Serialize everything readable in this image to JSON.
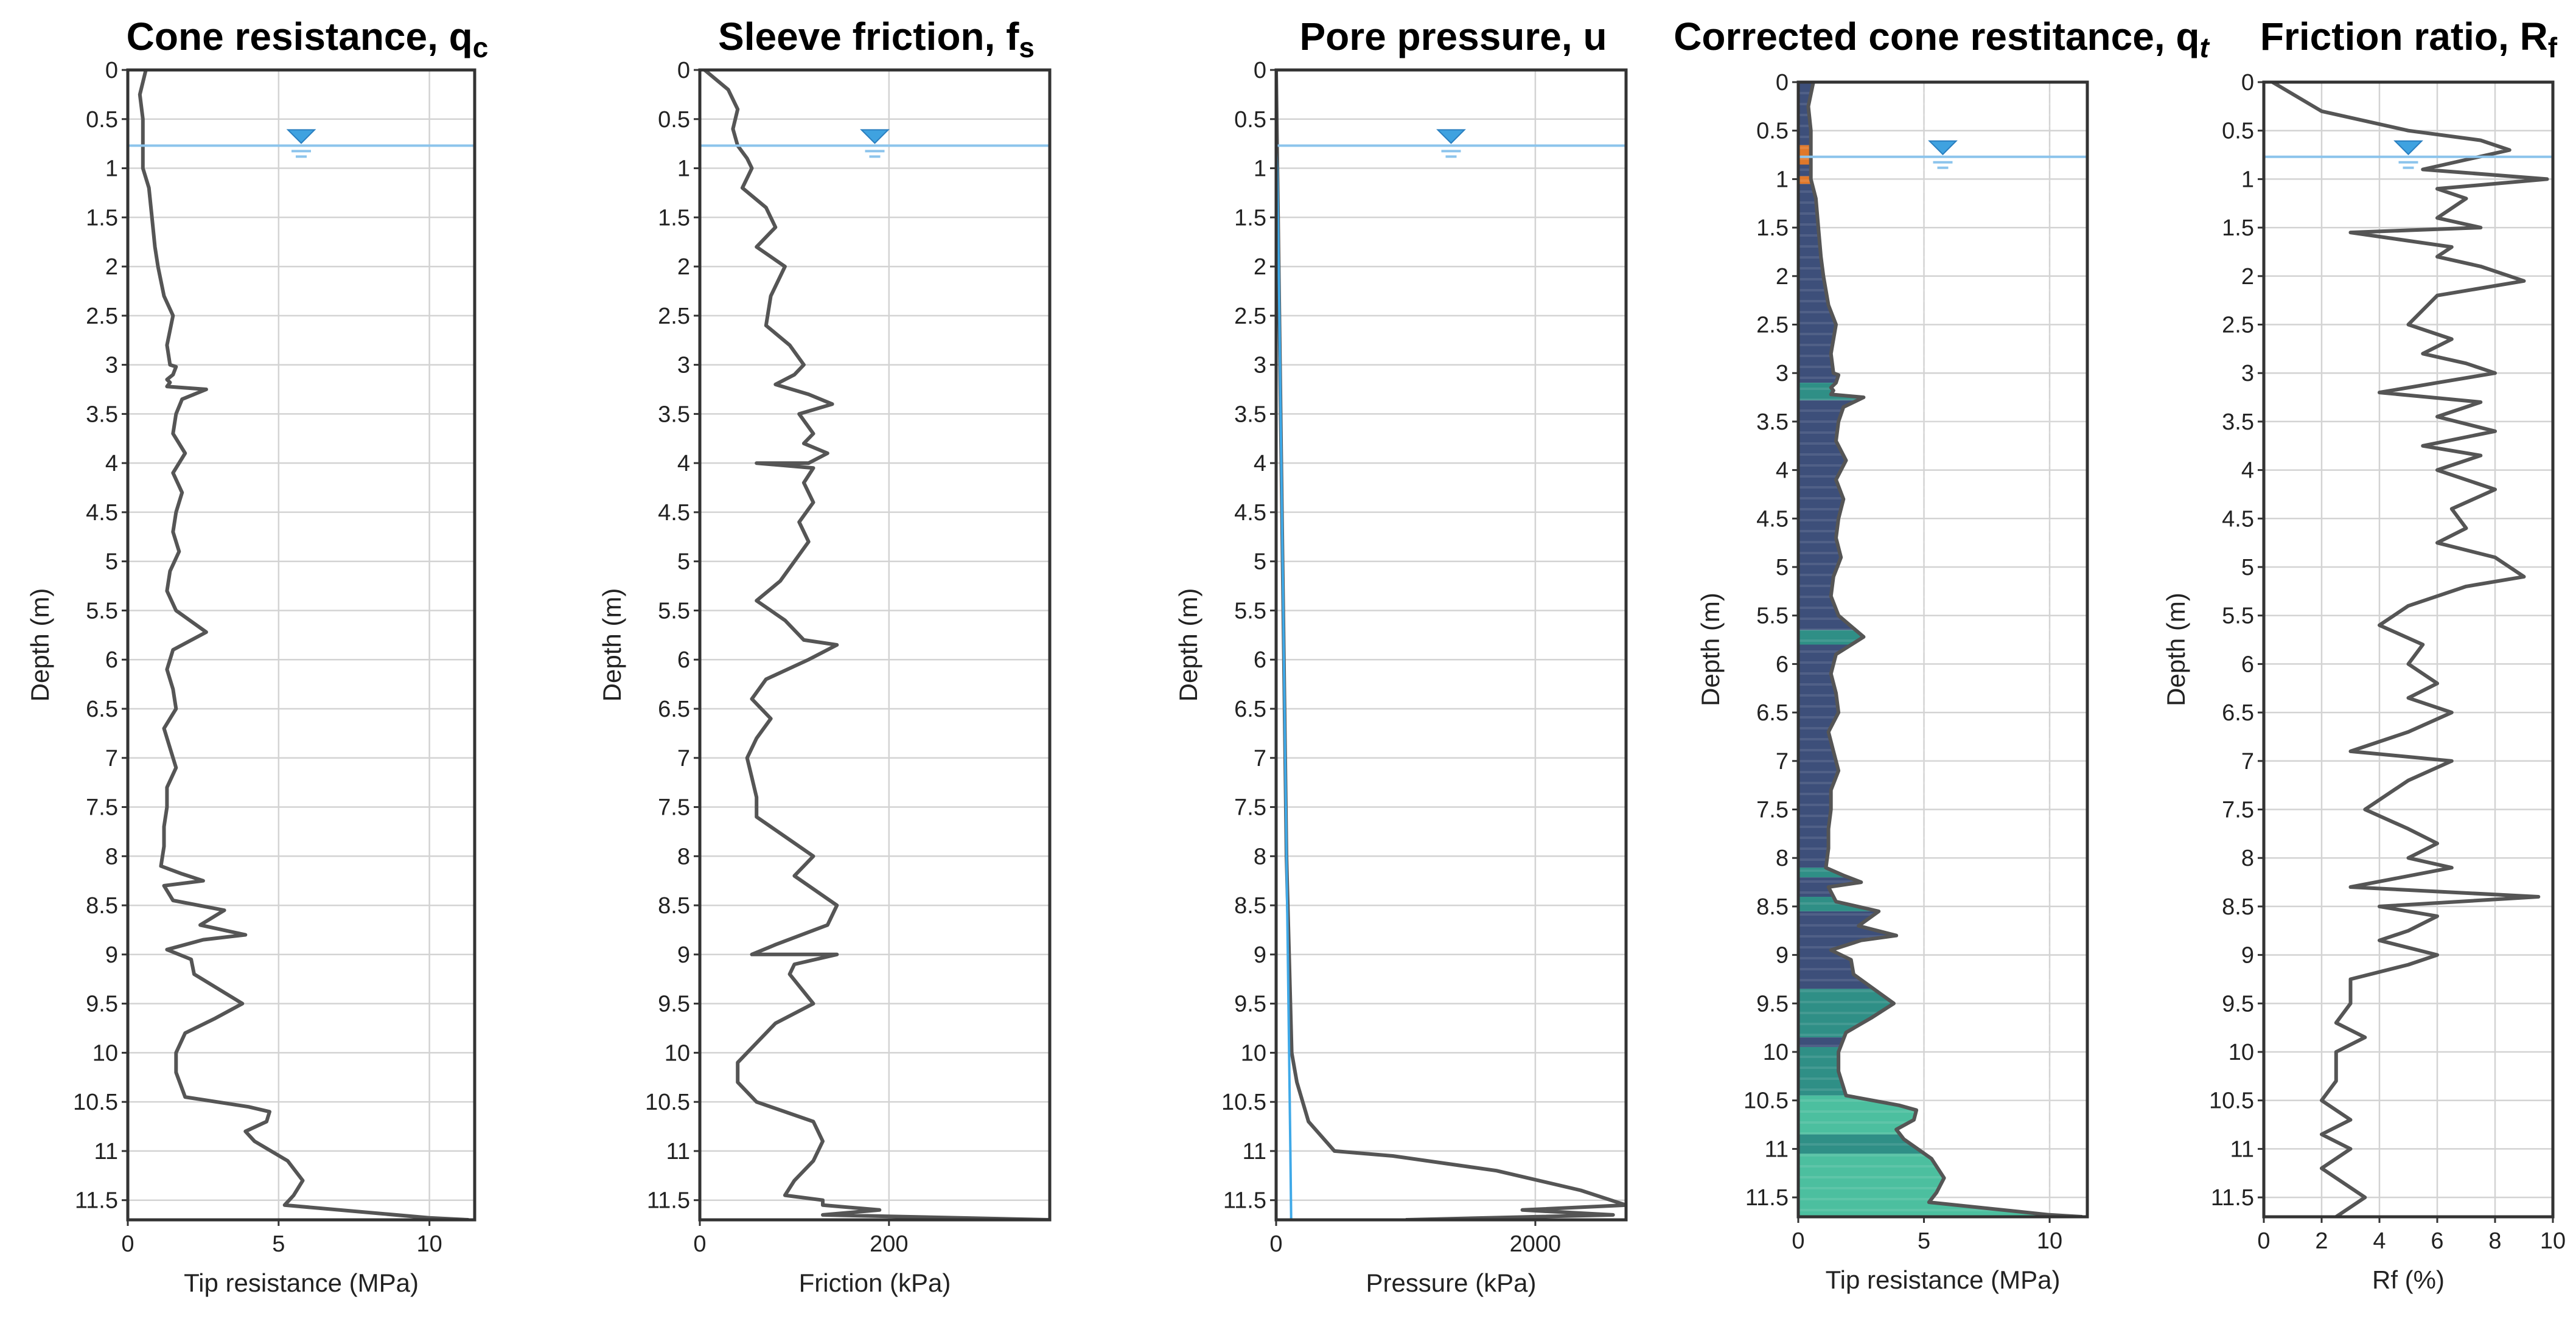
{
  "chart_data": [
    {
      "type": "line",
      "title": "Cone resistance, q",
      "title_sub": "c",
      "xlabel": "Tip resistance (MPa)",
      "ylabel": "Depth (m)",
      "xlim": [
        0,
        11.5
      ],
      "ylim": [
        0,
        11.7
      ],
      "x_ticks": [
        0,
        5,
        10
      ],
      "y_ticks": [
        0,
        0.5,
        1,
        1.5,
        2,
        2.5,
        3,
        3.5,
        4,
        4.5,
        5,
        5.5,
        6,
        6.5,
        7,
        7.5,
        8,
        8.5,
        9,
        9.5,
        10,
        10.5,
        11,
        11.5
      ],
      "grid": true,
      "water_table_depth": 0.77,
      "series": [
        {
          "x": [
            0.6,
            0.4,
            0.5,
            0.5,
            0.5,
            0.7,
            0.8,
            0.9,
            1.0,
            1.2,
            1.5,
            1.3,
            1.4,
            1.6,
            1.5,
            1.3,
            1.4,
            1.3,
            2.6,
            1.8,
            1.6,
            1.5,
            1.9,
            1.5,
            1.8,
            1.6,
            1.5,
            1.7,
            1.4,
            1.3,
            1.6,
            2.6,
            1.5,
            1.3,
            1.5,
            1.6,
            1.2,
            1.4,
            1.6,
            1.3,
            1.3,
            1.2,
            1.2,
            1.1,
            1.8,
            2.5,
            1.2,
            1.5,
            3.2,
            2.4,
            3.9,
            2.5,
            1.3,
            2.1,
            2.2,
            3.8,
            2.9,
            1.9,
            1.6,
            1.6,
            1.9,
            4.0,
            4.7,
            4.6,
            3.9,
            4.2,
            5.3,
            5.8,
            5.5,
            5.2,
            10.0,
            11.3
          ],
          "y": [
            0.0,
            0.25,
            0.5,
            0.77,
            1.0,
            1.2,
            1.5,
            1.8,
            2.0,
            2.3,
            2.5,
            2.8,
            3.0,
            3.02,
            3.1,
            3.15,
            3.18,
            3.22,
            3.25,
            3.35,
            3.5,
            3.7,
            3.9,
            4.1,
            4.3,
            4.5,
            4.7,
            4.9,
            5.1,
            5.3,
            5.5,
            5.72,
            5.9,
            6.1,
            6.3,
            6.5,
            6.7,
            6.9,
            7.1,
            7.3,
            7.5,
            7.7,
            7.9,
            8.1,
            8.18,
            8.25,
            8.3,
            8.45,
            8.55,
            8.7,
            8.8,
            8.85,
            8.95,
            9.05,
            9.2,
            9.5,
            9.65,
            9.8,
            10.0,
            10.2,
            10.45,
            10.55,
            10.6,
            10.7,
            10.8,
            10.9,
            11.1,
            11.3,
            11.45,
            11.55,
            11.68,
            11.7
          ]
        }
      ]
    },
    {
      "type": "line",
      "title": "Sleeve friction, f",
      "title_sub": "s",
      "xlabel": "Friction (kPa)",
      "ylabel": "Depth (m)",
      "xlim": [
        0,
        370
      ],
      "ylim": [
        0,
        11.7
      ],
      "x_ticks": [
        0,
        200
      ],
      "y_ticks": [
        0,
        0.5,
        1,
        1.5,
        2,
        2.5,
        3,
        3.5,
        4,
        4.5,
        5,
        5.5,
        6,
        6.5,
        7,
        7.5,
        8,
        8.5,
        9,
        9.5,
        10,
        10.5,
        11,
        11.5
      ],
      "grid": true,
      "water_table_depth": 0.77,
      "series": [
        {
          "x": [
            5,
            30,
            40,
            35,
            40,
            50,
            55,
            45,
            70,
            80,
            60,
            90,
            75,
            70,
            95,
            110,
            100,
            80,
            115,
            140,
            105,
            120,
            110,
            135,
            115,
            60,
            120,
            110,
            120,
            105,
            115,
            100,
            85,
            60,
            90,
            110,
            145,
            115,
            70,
            55,
            75,
            60,
            50,
            55,
            60,
            60,
            90,
            120,
            100,
            145,
            135,
            80,
            55,
            145,
            100,
            95,
            120,
            80,
            60,
            40,
            40,
            60,
            120,
            130,
            120,
            100,
            90,
            130,
            130,
            190,
            130,
            370
          ],
          "y": [
            0.0,
            0.2,
            0.4,
            0.6,
            0.77,
            0.9,
            1.0,
            1.2,
            1.4,
            1.6,
            1.8,
            2.0,
            2.3,
            2.6,
            2.8,
            3.0,
            3.1,
            3.2,
            3.3,
            3.4,
            3.5,
            3.7,
            3.8,
            3.9,
            4.0,
            4.0,
            4.05,
            4.2,
            4.4,
            4.6,
            4.8,
            5.0,
            5.2,
            5.4,
            5.6,
            5.8,
            5.85,
            6.0,
            6.2,
            6.4,
            6.6,
            6.8,
            7.0,
            7.2,
            7.4,
            7.6,
            7.8,
            8.0,
            8.2,
            8.5,
            8.7,
            8.9,
            9.0,
            9.0,
            9.1,
            9.2,
            9.5,
            9.7,
            9.9,
            10.1,
            10.3,
            10.5,
            10.7,
            10.9,
            11.1,
            11.3,
            11.45,
            11.5,
            11.55,
            11.6,
            11.65,
            11.7
          ]
        }
      ]
    },
    {
      "type": "line",
      "title": "Pore pressure, u",
      "xlabel": "Pressure (kPa)",
      "ylabel": "Depth (m)",
      "xlim": [
        0,
        2700
      ],
      "ylim": [
        0,
        11.7
      ],
      "x_ticks": [
        0,
        2000
      ],
      "y_ticks": [
        0,
        0.5,
        1,
        1.5,
        2,
        2.5,
        3,
        3.5,
        4,
        4.5,
        5,
        5.5,
        6,
        6.5,
        7,
        7.5,
        8,
        8.5,
        9,
        9.5,
        10,
        10.5,
        11,
        11.5
      ],
      "grid": true,
      "water_table_depth": 0.77,
      "series": [
        {
          "x": [
            0,
            10,
            20,
            30,
            40,
            50,
            60,
            70,
            80,
            100,
            120,
            160,
            250,
            450,
            900,
            1700,
            2350,
            2700,
            1900,
            2600,
            1000
          ],
          "y": [
            0.0,
            1.0,
            2.0,
            3.0,
            4.0,
            5.0,
            6.0,
            7.0,
            8.0,
            9.0,
            10.0,
            10.3,
            10.7,
            11.0,
            11.05,
            11.2,
            11.4,
            11.55,
            11.6,
            11.65,
            11.7
          ]
        },
        {
          "x": [
            0,
            8,
            20,
            30,
            40,
            50,
            60,
            70,
            80,
            90,
            100,
            110,
            116
          ],
          "y": [
            0.77,
            1.0,
            2.0,
            3.0,
            4.0,
            5.0,
            6.0,
            7.0,
            8.0,
            9.0,
            10.0,
            11.0,
            11.7
          ]
        }
      ]
    },
    {
      "type": "area",
      "title": "Corrected cone restitance, q",
      "title_sub": "t",
      "xlabel": "Tip resistance (MPa)",
      "ylabel": "Depth (m)",
      "xlim": [
        0,
        11.5
      ],
      "ylim": [
        0,
        11.7
      ],
      "x_ticks": [
        0,
        5,
        10
      ],
      "y_ticks": [
        0,
        0.5,
        1,
        1.5,
        2,
        2.5,
        3,
        3.5,
        4,
        4.5,
        5,
        5.5,
        6,
        6.5,
        7,
        7.5,
        8,
        8.5,
        9,
        9.5,
        10,
        10.5,
        11,
        11.5
      ],
      "grid": true,
      "water_table_depth": 0.77,
      "colors": [
        "#3d4f7a",
        "#2f8f86",
        "#4cbf9f",
        "#e0782a"
      ],
      "series": [
        {
          "x": [
            0.6,
            0.4,
            0.5,
            0.5,
            0.5,
            0.7,
            0.8,
            0.9,
            1.0,
            1.2,
            1.5,
            1.3,
            1.4,
            1.6,
            1.5,
            1.3,
            1.4,
            1.3,
            2.6,
            1.8,
            1.6,
            1.5,
            1.9,
            1.5,
            1.8,
            1.6,
            1.5,
            1.7,
            1.4,
            1.3,
            1.6,
            2.6,
            1.5,
            1.3,
            1.5,
            1.6,
            1.2,
            1.4,
            1.6,
            1.3,
            1.3,
            1.2,
            1.2,
            1.1,
            1.8,
            2.5,
            1.2,
            1.5,
            3.2,
            2.4,
            3.9,
            2.5,
            1.3,
            2.1,
            2.2,
            3.8,
            2.9,
            1.9,
            1.6,
            1.6,
            1.9,
            4.0,
            4.7,
            4.6,
            3.9,
            4.2,
            5.3,
            5.8,
            5.5,
            5.2,
            10.0,
            11.3
          ],
          "y": [
            0.0,
            0.25,
            0.5,
            0.77,
            1.0,
            1.2,
            1.5,
            1.8,
            2.0,
            2.3,
            2.5,
            2.8,
            3.0,
            3.02,
            3.1,
            3.15,
            3.18,
            3.22,
            3.25,
            3.35,
            3.5,
            3.7,
            3.9,
            4.1,
            4.3,
            4.5,
            4.7,
            4.9,
            5.1,
            5.3,
            5.5,
            5.72,
            5.9,
            6.1,
            6.3,
            6.5,
            6.7,
            6.9,
            7.1,
            7.3,
            7.5,
            7.7,
            7.9,
            8.1,
            8.18,
            8.25,
            8.3,
            8.45,
            8.55,
            8.7,
            8.8,
            8.85,
            8.95,
            9.05,
            9.2,
            9.5,
            9.65,
            9.8,
            10.0,
            10.2,
            10.45,
            10.55,
            10.6,
            10.7,
            10.8,
            10.9,
            11.1,
            11.3,
            11.45,
            11.55,
            11.68,
            11.7
          ]
        }
      ],
      "color_bands": [
        {
          "from": 0.0,
          "to": 0.65,
          "color_index": 0
        },
        {
          "from": 0.65,
          "to": 0.85,
          "color_index": 3
        },
        {
          "from": 0.85,
          "to": 0.97,
          "color_index": 0
        },
        {
          "from": 0.97,
          "to": 1.05,
          "color_index": 3
        },
        {
          "from": 1.05,
          "to": 3.1,
          "color_index": 0
        },
        {
          "from": 3.1,
          "to": 3.28,
          "color_index": 1
        },
        {
          "from": 3.28,
          "to": 5.65,
          "color_index": 0
        },
        {
          "from": 5.65,
          "to": 5.8,
          "color_index": 1
        },
        {
          "from": 5.8,
          "to": 8.1,
          "color_index": 0
        },
        {
          "from": 8.1,
          "to": 8.2,
          "color_index": 1
        },
        {
          "from": 8.2,
          "to": 8.4,
          "color_index": 0
        },
        {
          "from": 8.4,
          "to": 8.55,
          "color_index": 1
        },
        {
          "from": 8.55,
          "to": 9.35,
          "color_index": 0
        },
        {
          "from": 9.35,
          "to": 9.85,
          "color_index": 1
        },
        {
          "from": 9.85,
          "to": 9.95,
          "color_index": 0
        },
        {
          "from": 9.95,
          "to": 10.45,
          "color_index": 1
        },
        {
          "from": 10.45,
          "to": 10.85,
          "color_index": 2
        },
        {
          "from": 10.85,
          "to": 11.05,
          "color_index": 1
        },
        {
          "from": 11.05,
          "to": 11.7,
          "color_index": 2
        }
      ]
    },
    {
      "type": "line",
      "title": "Friction ratio, R",
      "title_sub": "f",
      "xlabel": "Rf (%)",
      "ylabel": "Depth (m)",
      "xlim": [
        0,
        10
      ],
      "ylim": [
        0,
        11.7
      ],
      "x_ticks": [
        0,
        2,
        4,
        6,
        8,
        10
      ],
      "y_ticks": [
        0,
        0.5,
        1,
        1.5,
        2,
        2.5,
        3,
        3.5,
        4,
        4.5,
        5,
        5.5,
        6,
        6.5,
        7,
        7.5,
        8,
        8.5,
        9,
        9.5,
        10,
        10.5,
        11,
        11.5
      ],
      "grid": true,
      "water_table_depth": 0.77,
      "series": [
        {
          "x": [
            0.3,
            2.0,
            5.0,
            7.5,
            8.5,
            7.0,
            5.5,
            9.8,
            6.0,
            7.0,
            6.0,
            7.5,
            3.0,
            6.5,
            6.0,
            7.5,
            9.0,
            6.0,
            5.0,
            6.5,
            5.5,
            7.0,
            8.0,
            6.0,
            4.0,
            7.5,
            6.0,
            8.0,
            5.5,
            7.5,
            6.0,
            8.0,
            6.5,
            7.0,
            6.0,
            8.0,
            9.0,
            7.0,
            5.0,
            4.0,
            5.5,
            5.0,
            6.0,
            5.0,
            6.5,
            5.0,
            3.0,
            6.5,
            5.0,
            3.5,
            5.0,
            6.0,
            5.0,
            6.5,
            3.0,
            9.5,
            4.0,
            6.0,
            5.0,
            4.0,
            6.0,
            5.0,
            3.0,
            3.0,
            2.5,
            3.5,
            2.5,
            2.5,
            2.0,
            3.0,
            2.0,
            3.0,
            2.0,
            3.5,
            2.5
          ],
          "y": [
            0.0,
            0.3,
            0.5,
            0.6,
            0.7,
            0.8,
            0.9,
            1.0,
            1.1,
            1.2,
            1.4,
            1.5,
            1.55,
            1.7,
            1.8,
            1.9,
            2.05,
            2.2,
            2.5,
            2.65,
            2.8,
            2.9,
            3.0,
            3.1,
            3.2,
            3.3,
            3.45,
            3.6,
            3.75,
            3.85,
            4.0,
            4.2,
            4.4,
            4.6,
            4.75,
            4.9,
            5.1,
            5.2,
            5.4,
            5.6,
            5.8,
            6.0,
            6.2,
            6.35,
            6.5,
            6.7,
            6.9,
            7.0,
            7.2,
            7.5,
            7.7,
            7.85,
            8.0,
            8.1,
            8.3,
            8.4,
            8.5,
            8.6,
            8.75,
            8.85,
            9.0,
            9.1,
            9.25,
            9.5,
            9.7,
            9.85,
            10.0,
            10.3,
            10.5,
            10.7,
            10.85,
            11.0,
            11.2,
            11.5,
            11.7
          ]
        }
      ]
    }
  ]
}
